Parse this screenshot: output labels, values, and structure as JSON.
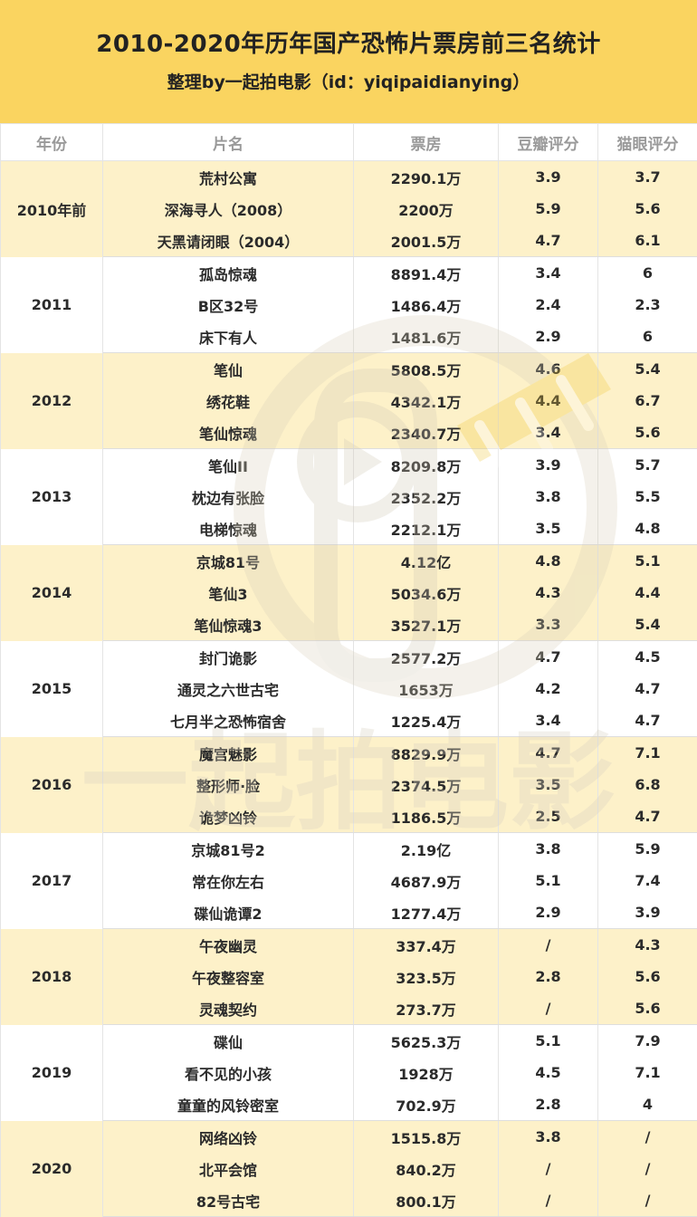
{
  "header": {
    "title": "2010-2020年历年国产恐怖片票房前三名统计",
    "subtitle": "整理by一起拍电影（id：yiqipaidianying）"
  },
  "table": {
    "columns": [
      "年份",
      "片名",
      "票房",
      "豆瓣评分",
      "猫眼评分"
    ],
    "groups": [
      {
        "year": "2010年前",
        "rows": [
          {
            "title": "荒村公寓",
            "box": "2290.1万",
            "douban": "3.9",
            "maoyan": "3.7"
          },
          {
            "title": "深海寻人（2008）",
            "box": "2200万",
            "douban": "5.9",
            "maoyan": "5.6"
          },
          {
            "title": "天黑请闭眼（2004）",
            "box": "2001.5万",
            "douban": "4.7",
            "maoyan": "6.1"
          }
        ]
      },
      {
        "year": "2011",
        "rows": [
          {
            "title": "孤岛惊魂",
            "box": "8891.4万",
            "douban": "3.4",
            "maoyan": "6"
          },
          {
            "title": "B区32号",
            "box": "1486.4万",
            "douban": "2.4",
            "maoyan": "2.3"
          },
          {
            "title": "床下有人",
            "box": "1481.6万",
            "douban": "2.9",
            "maoyan": "6"
          }
        ]
      },
      {
        "year": "2012",
        "rows": [
          {
            "title": "笔仙",
            "box": "5808.5万",
            "douban": "4.6",
            "maoyan": "5.4"
          },
          {
            "title": "绣花鞋",
            "box": "4342.1万",
            "douban": "4.4",
            "maoyan": "6.7"
          },
          {
            "title": "笔仙惊魂",
            "box": "2340.7万",
            "douban": "3.4",
            "maoyan": "5.6"
          }
        ]
      },
      {
        "year": "2013",
        "rows": [
          {
            "title": "笔仙II",
            "box": "8209.8万",
            "douban": "3.9",
            "maoyan": "5.7"
          },
          {
            "title": "枕边有张脸",
            "box": "2352.2万",
            "douban": "3.8",
            "maoyan": "5.5"
          },
          {
            "title": "电梯惊魂",
            "box": "2212.1万",
            "douban": "3.5",
            "maoyan": "4.8"
          }
        ]
      },
      {
        "year": "2014",
        "rows": [
          {
            "title": "京城81号",
            "box": "4.12亿",
            "douban": "4.8",
            "maoyan": "5.1"
          },
          {
            "title": "笔仙3",
            "box": "5034.6万",
            "douban": "4.3",
            "maoyan": "4.4"
          },
          {
            "title": "笔仙惊魂3",
            "box": "3527.1万",
            "douban": "3.3",
            "maoyan": "5.4"
          }
        ]
      },
      {
        "year": "2015",
        "rows": [
          {
            "title": "封门诡影",
            "box": "2577.2万",
            "douban": "4.7",
            "maoyan": "4.5"
          },
          {
            "title": "通灵之六世古宅",
            "box": "1653万",
            "douban": "4.2",
            "maoyan": "4.7"
          },
          {
            "title": "七月半之恐怖宿舍",
            "box": "1225.4万",
            "douban": "3.4",
            "maoyan": "4.7"
          }
        ]
      },
      {
        "year": "2016",
        "rows": [
          {
            "title": "魔宫魅影",
            "box": "8829.9万",
            "douban": "4.7",
            "maoyan": "7.1"
          },
          {
            "title": "整形师·脸",
            "box": "2374.5万",
            "douban": "3.5",
            "maoyan": "6.8"
          },
          {
            "title": "诡梦凶铃",
            "box": "1186.5万",
            "douban": "2.5",
            "maoyan": "4.7"
          }
        ]
      },
      {
        "year": "2017",
        "rows": [
          {
            "title": "京城81号2",
            "box": "2.19亿",
            "douban": "3.8",
            "maoyan": "5.9"
          },
          {
            "title": "常在你左右",
            "box": "4687.9万",
            "douban": "5.1",
            "maoyan": "7.4"
          },
          {
            "title": "碟仙诡谭2",
            "box": "1277.4万",
            "douban": "2.9",
            "maoyan": "3.9"
          }
        ]
      },
      {
        "year": "2018",
        "rows": [
          {
            "title": "午夜幽灵",
            "box": "337.4万",
            "douban": "/",
            "maoyan": "4.3"
          },
          {
            "title": "午夜整容室",
            "box": "323.5万",
            "douban": "2.8",
            "maoyan": "5.6"
          },
          {
            "title": "灵魂契约",
            "box": "273.7万",
            "douban": "/",
            "maoyan": "5.6"
          }
        ]
      },
      {
        "year": "2019",
        "rows": [
          {
            "title": "碟仙",
            "box": "5625.3万",
            "douban": "5.1",
            "maoyan": "7.9"
          },
          {
            "title": "看不见的小孩",
            "box": "1928万",
            "douban": "4.5",
            "maoyan": "7.1"
          },
          {
            "title": "童童的风铃密室",
            "box": "702.9万",
            "douban": "2.8",
            "maoyan": "4"
          }
        ]
      },
      {
        "year": "2020",
        "rows": [
          {
            "title": "网络凶铃",
            "box": "1515.8万",
            "douban": "3.8",
            "maoyan": "/"
          },
          {
            "title": "北平会馆",
            "box": "840.2万",
            "douban": "/",
            "maoyan": "/"
          },
          {
            "title": "82号古宅",
            "box": "800.1万",
            "douban": "/",
            "maoyan": "/"
          }
        ]
      }
    ]
  },
  "watermark": {
    "text": "一起拍电影",
    "color": "#d9d2c2"
  },
  "colors": {
    "header_bg": "#fad460",
    "shade_row": "#fdf1c9"
  }
}
